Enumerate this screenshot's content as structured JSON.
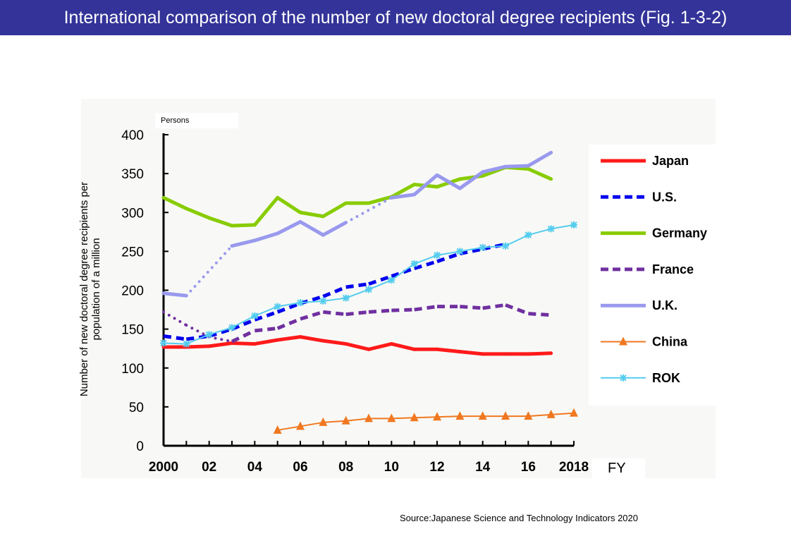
{
  "title": "International comparison of the number of new doctoral degree recipients (Fig. 1-3-2)",
  "source": "Source:Japanese Science and Technology Indicators 2020",
  "chart_data": {
    "type": "line",
    "title": "International comparison of the number of new doctoral degree recipients (Fig. 1-3-2)",
    "ylabel": "Number of new doctoral degree recipients per population of a million",
    "unit_label": "Persons",
    "xlabel": "FY",
    "xlim": [
      2000,
      2018
    ],
    "ylim": [
      0,
      400
    ],
    "x_ticks": [
      {
        "v": 2000,
        "label": "2000"
      },
      {
        "v": 2002,
        "label": "02"
      },
      {
        "v": 2004,
        "label": "04"
      },
      {
        "v": 2006,
        "label": "06"
      },
      {
        "v": 2008,
        "label": "08"
      },
      {
        "v": 2010,
        "label": "10"
      },
      {
        "v": 2012,
        "label": "12"
      },
      {
        "v": 2014,
        "label": "14"
      },
      {
        "v": 2016,
        "label": "16"
      },
      {
        "v": 2018,
        "label": "2018"
      }
    ],
    "y_ticks": [
      0,
      50,
      100,
      150,
      200,
      250,
      300,
      350,
      400
    ],
    "legend_position": "right",
    "series": [
      {
        "name": "Japan",
        "color": "#ff1a1a",
        "style": "solid",
        "marker": "none",
        "x": [
          2000,
          2001,
          2002,
          2003,
          2004,
          2005,
          2006,
          2007,
          2008,
          2009,
          2010,
          2011,
          2012,
          2013,
          2014,
          2015,
          2016,
          2017
        ],
        "values": [
          127,
          127,
          128,
          132,
          131,
          136,
          140,
          135,
          131,
          124,
          131,
          124,
          124,
          121,
          118,
          118,
          118,
          119
        ],
        "dotted_ranges": []
      },
      {
        "name": "U.S.",
        "color": "#0000ee",
        "style": "dashed",
        "marker": "none",
        "x": [
          2000,
          2001,
          2002,
          2003,
          2004,
          2005,
          2006,
          2007,
          2008,
          2009,
          2010,
          2011,
          2012,
          2013,
          2014,
          2015
        ],
        "values": [
          141,
          137,
          141,
          150,
          162,
          172,
          183,
          192,
          204,
          208,
          218,
          228,
          237,
          247,
          253,
          259
        ],
        "dotted_ranges": []
      },
      {
        "name": "Germany",
        "color": "#88cc00",
        "style": "solid",
        "marker": "none",
        "x": [
          2000,
          2001,
          2002,
          2003,
          2004,
          2005,
          2006,
          2007,
          2008,
          2009,
          2010,
          2011,
          2012,
          2013,
          2014,
          2015,
          2016,
          2017
        ],
        "values": [
          319,
          305,
          293,
          283,
          284,
          319,
          300,
          295,
          312,
          312,
          320,
          336,
          333,
          343,
          347,
          358,
          356,
          343
        ],
        "dotted_ranges": []
      },
      {
        "name": "France",
        "color": "#7030a0",
        "style": "dashed",
        "marker": "none",
        "x": [
          2000,
          2001,
          2002,
          2003,
          2004,
          2005,
          2006,
          2007,
          2008,
          2009,
          2010,
          2011,
          2012,
          2013,
          2014,
          2015,
          2016,
          2017
        ],
        "values": [
          172,
          155,
          140,
          134,
          148,
          151,
          163,
          172,
          169,
          172,
          174,
          175,
          179,
          179,
          177,
          181,
          170,
          168
        ],
        "dotted_ranges": [
          [
            2000,
            2003
          ]
        ]
      },
      {
        "name": "U.K.",
        "color": "#9999ee",
        "style": "solid",
        "marker": "none",
        "x": [
          2000,
          2001,
          2003,
          2004,
          2005,
          2006,
          2007,
          2008,
          2010,
          2011,
          2012,
          2013,
          2014,
          2015,
          2016,
          2017
        ],
        "values": [
          196,
          193,
          257,
          264,
          273,
          288,
          271,
          287,
          319,
          323,
          348,
          331,
          352,
          359,
          360,
          377
        ],
        "dotted_ranges": [
          [
            2001,
            2003
          ],
          [
            2008,
            2010
          ]
        ]
      },
      {
        "name": "China",
        "color": "#f07820",
        "style": "thin",
        "marker": "triangle",
        "x": [
          2005,
          2006,
          2007,
          2008,
          2009,
          2010,
          2011,
          2012,
          2013,
          2014,
          2015,
          2016,
          2017,
          2018
        ],
        "values": [
          20,
          25,
          30,
          32,
          35,
          35,
          36,
          37,
          38,
          38,
          38,
          38,
          40,
          42
        ],
        "dotted_ranges": []
      },
      {
        "name": "ROK",
        "color": "#55ccee",
        "style": "thin",
        "marker": "star",
        "x": [
          2000,
          2001,
          2002,
          2003,
          2004,
          2005,
          2006,
          2007,
          2008,
          2009,
          2010,
          2011,
          2012,
          2013,
          2014,
          2015,
          2016,
          2017,
          2018
        ],
        "values": [
          132,
          131,
          143,
          152,
          167,
          179,
          184,
          186,
          190,
          201,
          213,
          234,
          245,
          250,
          255,
          257,
          271,
          279,
          284
        ],
        "dotted_ranges": []
      }
    ]
  }
}
